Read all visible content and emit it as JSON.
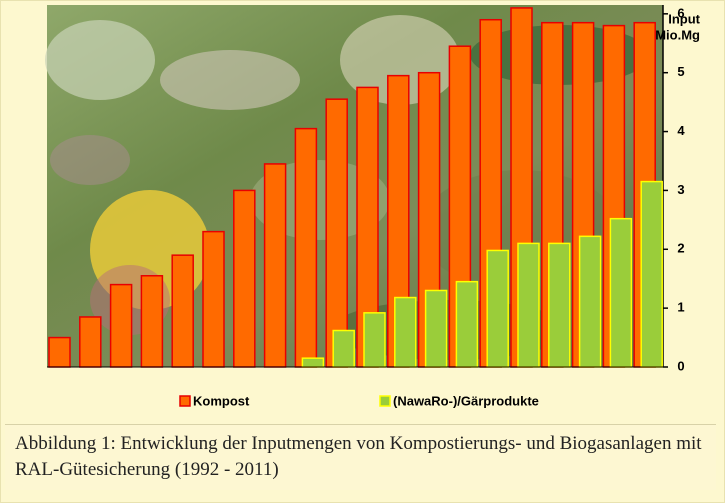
{
  "chart_data": {
    "type": "bar",
    "y_label": [
      "Input",
      "in Mio.Mg"
    ],
    "categories": [
      null,
      null,
      null,
      null,
      null,
      null,
      null,
      null,
      null,
      null,
      null,
      null,
      null,
      null,
      null,
      null,
      null,
      null,
      null,
      null
    ],
    "series": [
      {
        "name": "Kompost",
        "color": "#ff6a00",
        "stroke": "#e80000",
        "values": [
          0.5,
          0.85,
          1.4,
          1.55,
          1.9,
          2.3,
          3.0,
          3.45,
          4.05,
          4.55,
          4.75,
          4.95,
          5.0,
          5.45,
          5.9,
          6.1,
          5.85,
          5.85,
          5.8,
          5.85
        ]
      },
      {
        "name": "(NawaRo-)/Gärprodukte",
        "color": "#9acd3a",
        "stroke": "#ffff00",
        "values": [
          null,
          null,
          null,
          null,
          null,
          null,
          null,
          null,
          0.15,
          0.62,
          0.92,
          1.18,
          1.3,
          1.45,
          1.98,
          2.1,
          2.1,
          2.22,
          2.52,
          3.15
        ]
      }
    ],
    "ylim": [
      0,
      6.15
    ],
    "yticks": [
      0,
      1,
      2,
      3,
      4,
      5,
      6
    ],
    "legend": "bottom",
    "caption": "Abbildung 1: Entwicklung der Inputmengen von Kompostierungs- und Biogasanlagen mit RAL-Gütesicherung (1992 - 2011)"
  }
}
